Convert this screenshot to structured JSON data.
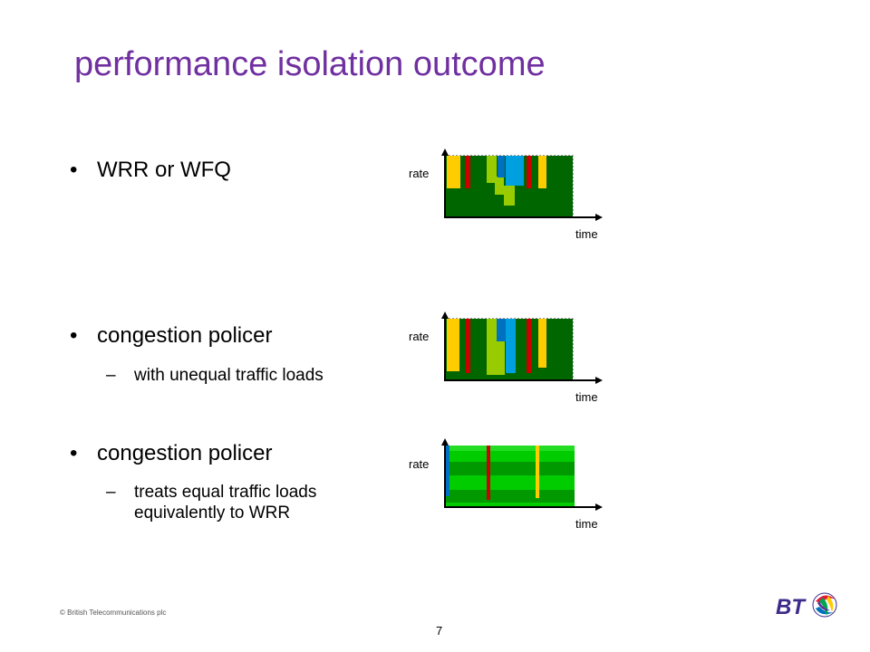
{
  "slide": {
    "title": "performance isolation outcome",
    "bullets": [
      {
        "text": "WRR or WFQ",
        "marker": "•"
      },
      {
        "text": "congestion policer",
        "marker": "•",
        "sub": {
          "marker": "–",
          "lines": [
            "with unequal traffic loads"
          ]
        }
      },
      {
        "text": "congestion policer",
        "marker": "•",
        "sub": {
          "marker": "–",
          "lines": [
            "treats equal traffic loads",
            "equivalently to WRR"
          ]
        }
      }
    ],
    "plots": [
      {
        "ylabel": "rate",
        "xlabel": "time"
      },
      {
        "ylabel": "rate",
        "xlabel": "time"
      },
      {
        "ylabel": "rate",
        "xlabel": "time"
      }
    ],
    "footer": {
      "copyright": "© British Telecommunications plc",
      "page": "7",
      "logo": "BT"
    }
  },
  "colors": {
    "title": "#7030a0",
    "dark_green": "#006600",
    "light_green": "#99cc00",
    "bright_green": "#00cc00",
    "yellow": "#ffcc00",
    "red": "#cc0000",
    "blue": "#0070c0",
    "cyan": "#00a0e0"
  }
}
